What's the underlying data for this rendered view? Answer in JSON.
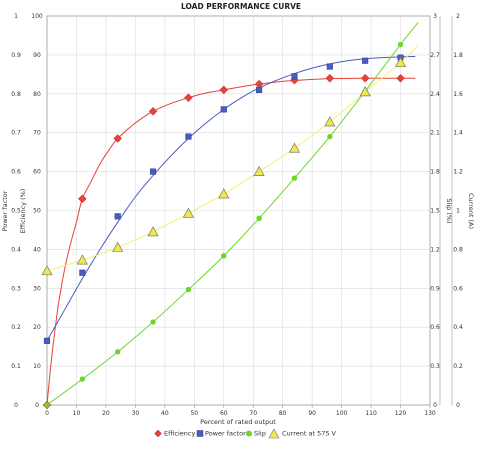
{
  "chart_data": {
    "type": "scatter",
    "title": "LOAD PERFORMANCE CURVE",
    "xlabel": "Percent of rated output",
    "xlim": [
      0,
      130
    ],
    "x_ticks": [
      "0",
      "10",
      "20",
      "30",
      "40",
      "50",
      "60",
      "70",
      "80",
      "90",
      "100",
      "110",
      "120",
      "130"
    ],
    "grid": true,
    "legend_position": "bottom",
    "axes": {
      "power_factor": {
        "label": "Power factor",
        "ticks": [
          "0",
          "0.1",
          "0.2",
          "0.3",
          "0.4",
          "0.5",
          "0.6",
          "0.7",
          "0.8",
          "0.9",
          "1"
        ],
        "range": [
          0,
          1
        ]
      },
      "efficiency": {
        "label": "Efficiency (%)",
        "ticks": [
          "0",
          "10",
          "20",
          "30",
          "40",
          "50",
          "60",
          "70",
          "80",
          "90",
          "100"
        ],
        "range": [
          0,
          100
        ]
      },
      "slip": {
        "label": "Slip (%)",
        "ticks": [
          "0",
          "0.3",
          "0.6",
          "0.9",
          "1.2",
          "1.5",
          "1.8",
          "2.1",
          "2.4",
          "2.7",
          "3"
        ],
        "range": [
          0,
          3
        ]
      },
      "current": {
        "label": "Current (A)",
        "ticks": [
          "0",
          "0.2",
          "0.4",
          "0.6",
          "0.8",
          "1",
          "1.2",
          "1.4",
          "1.6",
          "1.8",
          "2"
        ],
        "range": [
          0,
          2
        ]
      }
    },
    "series": [
      {
        "name": "Efficiency",
        "axis": "efficiency",
        "color": "#e8403a",
        "marker": "diamond",
        "points": [
          [
            0,
            0
          ],
          [
            12,
            53
          ],
          [
            24,
            68.5
          ],
          [
            36,
            75.5
          ],
          [
            48,
            79
          ],
          [
            60,
            81
          ],
          [
            72,
            82.5
          ],
          [
            84,
            83.5
          ],
          [
            96,
            84
          ],
          [
            108,
            84
          ],
          [
            120,
            84
          ]
        ],
        "curve": [
          [
            0,
            0
          ],
          [
            1,
            8
          ],
          [
            2,
            15
          ],
          [
            3,
            21
          ],
          [
            4,
            26.5
          ],
          [
            6,
            35
          ],
          [
            8,
            41.5
          ],
          [
            10,
            47
          ],
          [
            12,
            53
          ],
          [
            15,
            57.5
          ],
          [
            18,
            62
          ],
          [
            21,
            65.5
          ],
          [
            24,
            68.5
          ],
          [
            30,
            72.5
          ],
          [
            36,
            75.5
          ],
          [
            42,
            77.5
          ],
          [
            48,
            79
          ],
          [
            54,
            80.2
          ],
          [
            60,
            81
          ],
          [
            66,
            81.8
          ],
          [
            72,
            82.5
          ],
          [
            80,
            83.2
          ],
          [
            88,
            83.6
          ],
          [
            96,
            83.9
          ],
          [
            108,
            84
          ],
          [
            120,
            84
          ],
          [
            125,
            84
          ]
        ]
      },
      {
        "name": "Power factor",
        "axis": "power_factor",
        "color": "#4a5cc0",
        "marker": "square",
        "points": [
          [
            0,
            0.165
          ],
          [
            12,
            0.34
          ],
          [
            24,
            0.485
          ],
          [
            36,
            0.6
          ],
          [
            48,
            0.69
          ],
          [
            60,
            0.76
          ],
          [
            72,
            0.81
          ],
          [
            84,
            0.845
          ],
          [
            96,
            0.87
          ],
          [
            108,
            0.885
          ],
          [
            120,
            0.893
          ]
        ],
        "curve": [
          [
            0,
            0.165
          ],
          [
            6,
            0.245
          ],
          [
            12,
            0.325
          ],
          [
            18,
            0.4
          ],
          [
            24,
            0.47
          ],
          [
            30,
            0.535
          ],
          [
            36,
            0.59
          ],
          [
            42,
            0.64
          ],
          [
            48,
            0.685
          ],
          [
            54,
            0.725
          ],
          [
            60,
            0.76
          ],
          [
            66,
            0.79
          ],
          [
            72,
            0.815
          ],
          [
            78,
            0.835
          ],
          [
            84,
            0.852
          ],
          [
            90,
            0.866
          ],
          [
            96,
            0.877
          ],
          [
            102,
            0.885
          ],
          [
            108,
            0.89
          ],
          [
            114,
            0.893
          ],
          [
            120,
            0.895
          ],
          [
            125,
            0.896
          ]
        ]
      },
      {
        "name": "Slip",
        "axis": "slip",
        "color": "#6dd62b",
        "marker": "dot",
        "points": [
          [
            0,
            0
          ],
          [
            12,
            0.2
          ],
          [
            24,
            0.41
          ],
          [
            36,
            0.64
          ],
          [
            48,
            0.89
          ],
          [
            60,
            1.15
          ],
          [
            72,
            1.44
          ],
          [
            84,
            1.75
          ],
          [
            96,
            2.07
          ],
          [
            108,
            2.42
          ],
          [
            120,
            2.78
          ]
        ],
        "curve": [
          [
            0,
            0
          ],
          [
            12,
            0.2
          ],
          [
            24,
            0.41
          ],
          [
            36,
            0.64
          ],
          [
            48,
            0.89
          ],
          [
            60,
            1.15
          ],
          [
            72,
            1.44
          ],
          [
            84,
            1.75
          ],
          [
            96,
            2.07
          ],
          [
            108,
            2.42
          ],
          [
            120,
            2.78
          ],
          [
            126,
            2.95
          ]
        ]
      },
      {
        "name": "Current at 575 V",
        "axis": "current",
        "color": "#f2e84a",
        "marker": "triangle",
        "points": [
          [
            0,
            0.69
          ],
          [
            12,
            0.745
          ],
          [
            24,
            0.81
          ],
          [
            36,
            0.89
          ],
          [
            48,
            0.985
          ],
          [
            60,
            1.085
          ],
          [
            72,
            1.2
          ],
          [
            84,
            1.32
          ],
          [
            96,
            1.455
          ],
          [
            108,
            1.61
          ],
          [
            120,
            1.76
          ]
        ],
        "curve": [
          [
            0,
            0.69
          ],
          [
            12,
            0.745
          ],
          [
            24,
            0.81
          ],
          [
            36,
            0.89
          ],
          [
            48,
            0.985
          ],
          [
            60,
            1.085
          ],
          [
            72,
            1.2
          ],
          [
            84,
            1.32
          ],
          [
            96,
            1.455
          ],
          [
            108,
            1.61
          ],
          [
            120,
            1.76
          ],
          [
            126,
            1.85
          ]
        ]
      }
    ]
  }
}
